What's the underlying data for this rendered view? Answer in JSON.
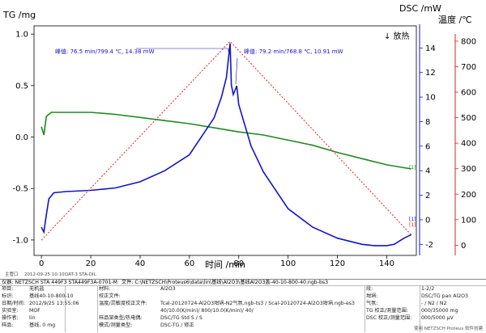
{
  "chart_data": {
    "type": "line",
    "xlabel": "时间 /min",
    "x_ticks": [
      0,
      20,
      40,
      60,
      80,
      100,
      120,
      140
    ],
    "xlim": [
      -3,
      152
    ],
    "tg_axis": {
      "label": "TG /mg",
      "ticks": [
        "1.0",
        "0.5",
        "0.0",
        "-0.5",
        "-1.0"
      ],
      "ylim": [
        -1.15,
        1.08
      ]
    },
    "dsc_axis": {
      "label": "DSC /mW",
      "ticks": [
        "14",
        "12",
        "10",
        "8",
        "6",
        "4",
        "2",
        "0",
        "-2"
      ],
      "ylim": [
        -2.9,
        15.8
      ]
    },
    "temp_axis": {
      "label": "温度 /℃",
      "ticks": [
        "800",
        "700",
        "600",
        "500",
        "400",
        "300",
        "200",
        "100",
        "0"
      ],
      "ylim": [
        -40,
        860
      ]
    },
    "exo_label": "↓ 放热",
    "annotations": [
      {
        "text": "峰值: 76.5 min/799.4 ℃, 14.38 mW",
        "x": 76.5,
        "y_dsc": 14.38
      },
      {
        "text": "峰值: 79.2 min/768.8 ℃, 10.91 mW",
        "x": 79.2,
        "y_dsc": 10.91
      }
    ],
    "end_markers": [
      "[1]",
      "[1]",
      "[1]"
    ],
    "series": [
      {
        "axis": "tg",
        "color": "#1f8a1f",
        "x": [
          0,
          1,
          2,
          4,
          6,
          10,
          20,
          30,
          40,
          50,
          60,
          70,
          80,
          90,
          100,
          110,
          120,
          130,
          140,
          145,
          150
        ],
        "y": [
          0.1,
          0.02,
          0.2,
          0.24,
          0.24,
          0.24,
          0.24,
          0.22,
          0.19,
          0.16,
          0.13,
          0.09,
          0.05,
          0.02,
          -0.03,
          -0.08,
          -0.15,
          -0.21,
          -0.27,
          -0.29,
          -0.31
        ]
      },
      {
        "axis": "dsc",
        "color": "#1414c8",
        "x": [
          0,
          1,
          2,
          3,
          5,
          10,
          20,
          30,
          40,
          50,
          60,
          70,
          73,
          75,
          76.5,
          77,
          77.8,
          79.2,
          80,
          85,
          90,
          100,
          110,
          120,
          130,
          135,
          140,
          143,
          147,
          150
        ],
        "y": [
          -0.6,
          -1.0,
          0.4,
          1.7,
          2.2,
          2.3,
          2.4,
          2.6,
          3.1,
          4.0,
          5.3,
          8.3,
          10.0,
          11.6,
          14.38,
          11.0,
          10.2,
          10.91,
          9.4,
          6.0,
          3.9,
          0.9,
          -0.6,
          -1.5,
          -2.0,
          -2.1,
          -2.1,
          -2.0,
          -1.5,
          -1.2
        ]
      },
      {
        "axis": "temp",
        "color": "#dd2222",
        "x": [
          0,
          76.5,
          150
        ],
        "y": [
          20,
          799.4,
          40
        ]
      }
    ]
  },
  "footer": {
    "operator": "主管口",
    "timestamp": "2012-09-25 10:10",
    "software": "DAT-3 STA-DIL"
  },
  "meta": {
    "instrument_key": "仪器:",
    "instrument": "NETZSCH STA 449F3 STA449F3A-0701-M",
    "file_key": "文件:",
    "file": "C:\\NETZSCH\\Proteus6\\data\\lin\\基线\\Al2O3\\基线Al2O3盖-40-10-800-40.ngb-bs3",
    "rows_left": [
      {
        "k": "项目:",
        "v": "无机盐"
      },
      {
        "k": "标识:",
        "v": "基线40-10-800-10"
      },
      {
        "k": "日期/时间:",
        "v": "2012/9/25 13:55:06"
      },
      {
        "k": "实验室:",
        "v": "MOF"
      },
      {
        "k": "操作者:",
        "v": "lin"
      },
      {
        "k": "样品:",
        "v": "基线, 0 mg"
      }
    ],
    "rows_mid": [
      {
        "k": "材料:",
        "v": "Al2O3"
      },
      {
        "k": "校正文件:",
        "v": ""
      },
      {
        "k": "温度/灵敏度校正文件:",
        "v": "Tcal-20120724-Al2O3坩埚-N2气氛.ngb-ts3 / Scal-20120724-Al2O3坩埚.ngb-es3"
      },
      {
        "k": "",
        "v": "40/10.0(K/min)/ 800/10.0(K/min)/ 40/"
      },
      {
        "k": "样品架类型/热电偶:",
        "v": "DSC/TG Std S / S"
      },
      {
        "k": "模式/测量类型:",
        "v": "DSC-TG / 修正"
      }
    ],
    "rows_right": [
      {
        "k": "段:",
        "v": "1-2/2"
      },
      {
        "k": "坩埚:",
        "v": "DSC/TG pan Al2O3"
      },
      {
        "k": "气氛:",
        "v": "- / N2 / N2"
      },
      {
        "k": "TG 校正/测量范围:",
        "v": "000/35000 mg"
      },
      {
        "k": "DSC 校正/测量范围:",
        "v": "000/5000 μV"
      }
    ],
    "watermark": "使用 NETZSCH Proteus 软件创建"
  }
}
